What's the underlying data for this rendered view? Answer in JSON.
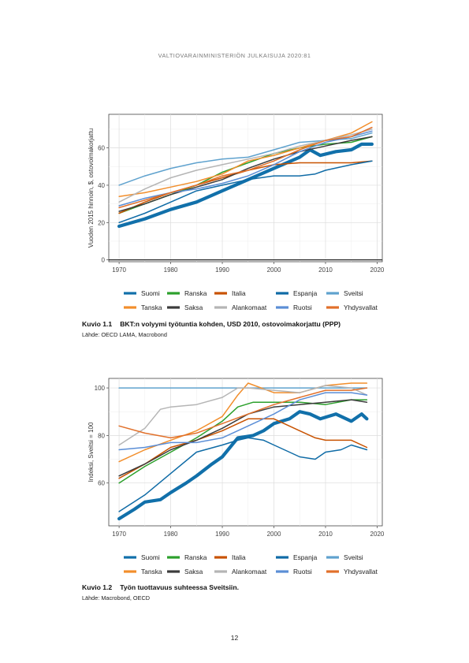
{
  "header": {
    "running_title": "VALTIOVARAINMINISTERIÖN JULKAISUJA 2020:81"
  },
  "figure1": {
    "number": "Kuvio 1.1",
    "caption": "BKT:n volyymi työtuntia kohden, USD 2010, ostovoimakorjattu (PPP)",
    "source": "Lähde: OECD LAMA, Macrobond"
  },
  "figure2": {
    "number": "Kuvio 1.2",
    "caption": "Työn tuottavuus suhteessa Sveitsiin.",
    "source": "Lähde: Macrobond, OECD"
  },
  "page_number": "12",
  "chart_data": [
    {
      "type": "line",
      "title": "",
      "xlabel": "",
      "ylabel": "Vuoden 2015 hinnoin, $, ostovoimakorjattu",
      "xlim": [
        1968,
        2021
      ],
      "ylim": [
        -1,
        78
      ],
      "x_ticks": [
        1970,
        1980,
        1990,
        2000,
        2010,
        2020
      ],
      "y_ticks": [
        0,
        20,
        40,
        60
      ],
      "grid": true,
      "legend_position": "bottom",
      "reference_line": 0,
      "series": [
        {
          "name": "Suomi",
          "color": "#1170aa",
          "width": 4.2,
          "points": [
            [
              1970,
              18
            ],
            [
              1975,
              22
            ],
            [
              1980,
              27
            ],
            [
              1985,
              31
            ],
            [
              1990,
              37
            ],
            [
              1995,
              43
            ],
            [
              2000,
              49
            ],
            [
              2005,
              55
            ],
            [
              2007,
              59
            ],
            [
              2009,
              56
            ],
            [
              2012,
              58
            ],
            [
              2015,
              59
            ],
            [
              2017,
              62
            ],
            [
              2019,
              62
            ]
          ]
        },
        {
          "name": "Ranska",
          "color": "#2ca02c",
          "width": 1.5,
          "points": [
            [
              1970,
              25
            ],
            [
              1975,
              30
            ],
            [
              1980,
              35
            ],
            [
              1985,
              40
            ],
            [
              1990,
              47
            ],
            [
              1995,
              52
            ],
            [
              2000,
              57
            ],
            [
              2005,
              60
            ],
            [
              2010,
              62
            ],
            [
              2015,
              63
            ],
            [
              2019,
              66
            ]
          ]
        },
        {
          "name": "Italia",
          "color": "#c85200",
          "width": 1.5,
          "points": [
            [
              1970,
              25
            ],
            [
              1975,
              31
            ],
            [
              1980,
              36
            ],
            [
              1985,
              40
            ],
            [
              1990,
              44
            ],
            [
              1995,
              48
            ],
            [
              2000,
              51
            ],
            [
              2005,
              52
            ],
            [
              2010,
              52
            ],
            [
              2015,
              52
            ],
            [
              2019,
              53
            ]
          ]
        },
        {
          "name": "Espanja",
          "color": "#0f6ba6",
          "width": 1.5,
          "points": [
            [
              1970,
              20
            ],
            [
              1975,
              25
            ],
            [
              1980,
              31
            ],
            [
              1985,
              37
            ],
            [
              1990,
              40
            ],
            [
              1995,
              43
            ],
            [
              2000,
              45
            ],
            [
              2005,
              45
            ],
            [
              2008,
              46
            ],
            [
              2010,
              48
            ],
            [
              2015,
              51
            ],
            [
              2019,
              53
            ]
          ]
        },
        {
          "name": "Sveitsi",
          "color": "#5fa2ce",
          "width": 1.5,
          "points": [
            [
              1970,
              40
            ],
            [
              1975,
              45
            ],
            [
              1980,
              49
            ],
            [
              1985,
              52
            ],
            [
              1990,
              54
            ],
            [
              1995,
              55
            ],
            [
              2000,
              59
            ],
            [
              2005,
              63
            ],
            [
              2010,
              64
            ],
            [
              2015,
              65
            ],
            [
              2019,
              68
            ]
          ]
        },
        {
          "name": "Tanska",
          "color": "#f28e2b",
          "width": 1.5,
          "points": [
            [
              1970,
              34
            ],
            [
              1975,
              36
            ],
            [
              1980,
              39
            ],
            [
              1985,
              42
            ],
            [
              1990,
              46
            ],
            [
              1995,
              53
            ],
            [
              2000,
              56
            ],
            [
              2005,
              60
            ],
            [
              2010,
              64
            ],
            [
              2015,
              68
            ],
            [
              2019,
              74
            ]
          ]
        },
        {
          "name": "Saksa",
          "color": "#3c3c3c",
          "width": 1.5,
          "points": [
            [
              1970,
              26
            ],
            [
              1975,
              30
            ],
            [
              1980,
              35
            ],
            [
              1985,
              39
            ],
            [
              1990,
              43
            ],
            [
              1995,
              49
            ],
            [
              2000,
              54
            ],
            [
              2005,
              58
            ],
            [
              2010,
              61
            ],
            [
              2015,
              64
            ],
            [
              2019,
              66
            ]
          ]
        },
        {
          "name": "Alankomaat",
          "color": "#b5b5b5",
          "width": 1.5,
          "points": [
            [
              1970,
              31
            ],
            [
              1975,
              38
            ],
            [
              1980,
              44
            ],
            [
              1985,
              48
            ],
            [
              1990,
              51
            ],
            [
              1995,
              54
            ],
            [
              2000,
              57
            ],
            [
              2005,
              61
            ],
            [
              2010,
              64
            ],
            [
              2015,
              67
            ],
            [
              2019,
              70
            ]
          ]
        },
        {
          "name": "Ruotsi",
          "color": "#5b8ed6",
          "width": 1.5,
          "points": [
            [
              1970,
              29
            ],
            [
              1975,
              33
            ],
            [
              1980,
              36
            ],
            [
              1985,
              38
            ],
            [
              1990,
              41
            ],
            [
              1995,
              45
            ],
            [
              2000,
              51
            ],
            [
              2005,
              58
            ],
            [
              2010,
              63
            ],
            [
              2015,
              66
            ],
            [
              2019,
              69
            ]
          ]
        },
        {
          "name": "Yhdysvallat",
          "color": "#e1702a",
          "width": 1.5,
          "points": [
            [
              1970,
              28
            ],
            [
              1975,
              32
            ],
            [
              1980,
              36
            ],
            [
              1985,
              40
            ],
            [
              1990,
              45
            ],
            [
              1995,
              48
            ],
            [
              2000,
              53
            ],
            [
              2005,
              59
            ],
            [
              2010,
              64
            ],
            [
              2015,
              66
            ],
            [
              2019,
              71
            ]
          ]
        }
      ]
    },
    {
      "type": "line",
      "title": "",
      "xlabel": "",
      "ylabel": "Indeksi, Sveitsi = 100",
      "xlim": [
        1968,
        2021
      ],
      "ylim": [
        42,
        104
      ],
      "x_ticks": [
        1970,
        1980,
        1990,
        2000,
        2010,
        2020
      ],
      "y_ticks": [
        60,
        80,
        100
      ],
      "grid": true,
      "legend_position": "bottom",
      "series": [
        {
          "name": "Suomi",
          "color": "#1170aa",
          "width": 4.2,
          "points": [
            [
              1970,
              45
            ],
            [
              1973,
              49
            ],
            [
              1975,
              52
            ],
            [
              1978,
              53
            ],
            [
              1980,
              56
            ],
            [
              1983,
              60
            ],
            [
              1985,
              63
            ],
            [
              1988,
              68
            ],
            [
              1990,
              71
            ],
            [
              1993,
              79
            ],
            [
              1996,
              80
            ],
            [
              1998,
              82
            ],
            [
              2000,
              85
            ],
            [
              2003,
              87
            ],
            [
              2005,
              90
            ],
            [
              2007,
              89
            ],
            [
              2009,
              87
            ],
            [
              2012,
              89
            ],
            [
              2015,
              86
            ],
            [
              2017,
              89
            ],
            [
              2018,
              87
            ]
          ]
        },
        {
          "name": "Ranska",
          "color": "#2ca02c",
          "width": 1.5,
          "points": [
            [
              1970,
              60
            ],
            [
              1975,
              67
            ],
            [
              1980,
              73
            ],
            [
              1985,
              79
            ],
            [
              1990,
              86
            ],
            [
              1993,
              92
            ],
            [
              1996,
              94
            ],
            [
              2000,
              94
            ],
            [
              2005,
              94
            ],
            [
              2010,
              93
            ],
            [
              2015,
              95
            ],
            [
              2018,
              95
            ]
          ]
        },
        {
          "name": "Italia",
          "color": "#c85200",
          "width": 1.5,
          "points": [
            [
              1970,
              62
            ],
            [
              1975,
              68
            ],
            [
              1980,
              75
            ],
            [
              1985,
              78
            ],
            [
              1990,
              82
            ],
            [
              1995,
              87
            ],
            [
              2000,
              87
            ],
            [
              2005,
              82
            ],
            [
              2008,
              79
            ],
            [
              2010,
              78
            ],
            [
              2015,
              78
            ],
            [
              2018,
              75
            ]
          ]
        },
        {
          "name": "Espanja",
          "color": "#0f6ba6",
          "width": 1.5,
          "points": [
            [
              1970,
              48
            ],
            [
              1975,
              55
            ],
            [
              1980,
              64
            ],
            [
              1985,
              73
            ],
            [
              1990,
              76
            ],
            [
              1993,
              78
            ],
            [
              1995,
              79
            ],
            [
              1998,
              78
            ],
            [
              2000,
              76
            ],
            [
              2003,
              73
            ],
            [
              2005,
              71
            ],
            [
              2008,
              70
            ],
            [
              2010,
              73
            ],
            [
              2013,
              74
            ],
            [
              2015,
              76
            ],
            [
              2018,
              74
            ]
          ]
        },
        {
          "name": "Sveitsi",
          "color": "#5fa2ce",
          "width": 1.5,
          "points": [
            [
              1970,
              100
            ],
            [
              2018,
              100
            ]
          ]
        },
        {
          "name": "Tanska",
          "color": "#f28e2b",
          "width": 1.5,
          "points": [
            [
              1970,
              69
            ],
            [
              1975,
              74
            ],
            [
              1980,
              78
            ],
            [
              1985,
              82
            ],
            [
              1990,
              88
            ],
            [
              1993,
              97
            ],
            [
              1995,
              102
            ],
            [
              2000,
              98
            ],
            [
              2005,
              98
            ],
            [
              2010,
              101
            ],
            [
              2015,
              102
            ],
            [
              2018,
              102
            ]
          ]
        },
        {
          "name": "Saksa",
          "color": "#3c3c3c",
          "width": 1.5,
          "points": [
            [
              1970,
              63
            ],
            [
              1975,
              68
            ],
            [
              1980,
              74
            ],
            [
              1985,
              78
            ],
            [
              1990,
              83
            ],
            [
              1995,
              89
            ],
            [
              2000,
              92
            ],
            [
              2005,
              93
            ],
            [
              2010,
              94
            ],
            [
              2015,
              95
            ],
            [
              2018,
              94
            ]
          ]
        },
        {
          "name": "Alankomaat",
          "color": "#b5b5b5",
          "width": 1.5,
          "points": [
            [
              1970,
              76
            ],
            [
              1975,
              83
            ],
            [
              1978,
              91
            ],
            [
              1980,
              92
            ],
            [
              1985,
              93
            ],
            [
              1990,
              96
            ],
            [
              1993,
              100
            ],
            [
              1995,
              100
            ],
            [
              2000,
              99
            ],
            [
              2005,
              98
            ],
            [
              2010,
              101
            ],
            [
              2015,
              100
            ],
            [
              2018,
              97
            ]
          ]
        },
        {
          "name": "Ruotsi",
          "color": "#5b8ed6",
          "width": 1.5,
          "points": [
            [
              1970,
              74
            ],
            [
              1975,
              75
            ],
            [
              1980,
              77
            ],
            [
              1985,
              77
            ],
            [
              1990,
              79
            ],
            [
              1995,
              84
            ],
            [
              2000,
              89
            ],
            [
              2005,
              95
            ],
            [
              2010,
              98
            ],
            [
              2015,
              98
            ],
            [
              2018,
              97
            ]
          ]
        },
        {
          "name": "Yhdysvallat",
          "color": "#e1702a",
          "width": 1.5,
          "points": [
            [
              1970,
              84
            ],
            [
              1975,
              81
            ],
            [
              1980,
              79
            ],
            [
              1985,
              81
            ],
            [
              1990,
              85
            ],
            [
              1995,
              89
            ],
            [
              2000,
              93
            ],
            [
              2005,
              96
            ],
            [
              2010,
              99
            ],
            [
              2015,
              99
            ],
            [
              2018,
              100
            ]
          ]
        }
      ]
    }
  ]
}
